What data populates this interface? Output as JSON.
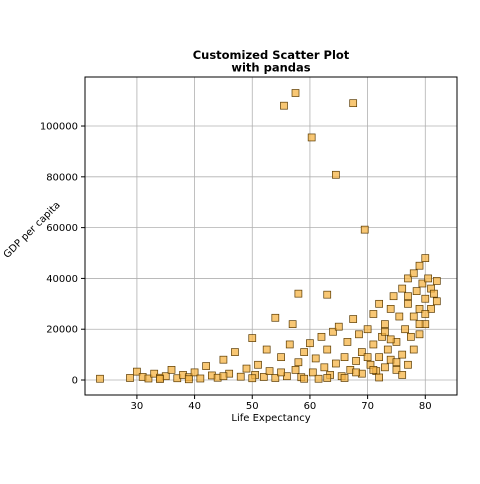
{
  "chart_data": {
    "type": "scatter",
    "title": "Customized Scatter Plot\nwith pandas",
    "x_label": "Life Expectancy",
    "y_label": "GDP per capita",
    "marker": "square",
    "color": "#f5b445",
    "edge_color": "#5a3a00",
    "grid": true,
    "xlim": [
      21,
      85.5
    ],
    "ylim": [
      -5900,
      119300
    ],
    "xticks": [
      30,
      40,
      50,
      60,
      70,
      80
    ],
    "yticks": [
      0,
      20000,
      40000,
      60000,
      80000,
      100000
    ],
    "x": [
      23.6,
      55.5,
      57.5,
      67.5,
      60.3,
      64.5,
      69.5,
      58,
      63,
      28.8,
      30,
      31,
      32,
      33,
      34,
      35,
      36,
      37,
      38,
      39,
      40,
      41,
      42,
      43,
      44,
      45,
      46,
      47,
      48,
      49,
      50,
      50.5,
      51,
      52,
      52.5,
      53,
      54,
      54,
      55,
      56,
      56.5,
      57,
      57.5,
      58,
      58.5,
      59,
      60,
      60.5,
      61,
      61.5,
      62,
      62.5,
      63,
      63.5,
      64,
      64.5,
      65,
      65.5,
      66,
      66.5,
      67,
      67.5,
      68,
      68.5,
      69,
      69,
      70,
      70.5,
      71,
      71,
      71.5,
      72,
      72,
      72.5,
      73,
      73,
      73.5,
      74,
      74,
      74.5,
      75,
      75,
      75.5,
      76,
      76,
      76.5,
      77,
      77,
      77,
      77.5,
      78,
      78,
      78,
      78.5,
      79,
      79,
      79,
      79.5,
      80,
      80,
      80,
      80.5,
      81,
      81,
      81.5,
      82,
      82,
      76,
      72,
      66,
      68,
      74,
      70,
      63,
      59,
      55,
      45,
      50,
      39,
      34,
      71,
      75,
      79,
      80,
      77,
      73
    ],
    "values": [
      500,
      108000,
      113000,
      109000,
      95500,
      80800,
      59200,
      34000,
      33600,
      800,
      3300,
      1200,
      600,
      2500,
      900,
      1500,
      4000,
      700,
      2000,
      1100,
      3000,
      600,
      5500,
      1800,
      900,
      8000,
      2500,
      11000,
      1300,
      4500,
      16500,
      2000,
      6000,
      1200,
      12000,
      3500,
      24500,
      800,
      9000,
      1500,
      14000,
      22000,
      4000,
      7000,
      1100,
      11000,
      14500,
      3000,
      8500,
      500,
      17000,
      5000,
      12000,
      2000,
      19000,
      6500,
      21000,
      1500,
      9000,
      15000,
      4000,
      24000,
      7500,
      18000,
      2500,
      11000,
      20000,
      6000,
      14000,
      26000,
      3500,
      9000,
      30000,
      17000,
      5000,
      22000,
      12000,
      28000,
      8000,
      33000,
      15000,
      4000,
      25000,
      36000,
      10000,
      20000,
      40000,
      30000,
      6000,
      17000,
      42000,
      25000,
      12000,
      35000,
      45000,
      28000,
      18000,
      38000,
      48000,
      32000,
      22000,
      40000,
      36000,
      28000,
      34000,
      39000,
      31000,
      2000,
      1000,
      800,
      3000,
      16000,
      9000,
      800,
      500,
      3000,
      1500,
      700,
      300,
      400,
      4000,
      7000,
      22000,
      26000,
      33000,
      19000
    ]
  }
}
